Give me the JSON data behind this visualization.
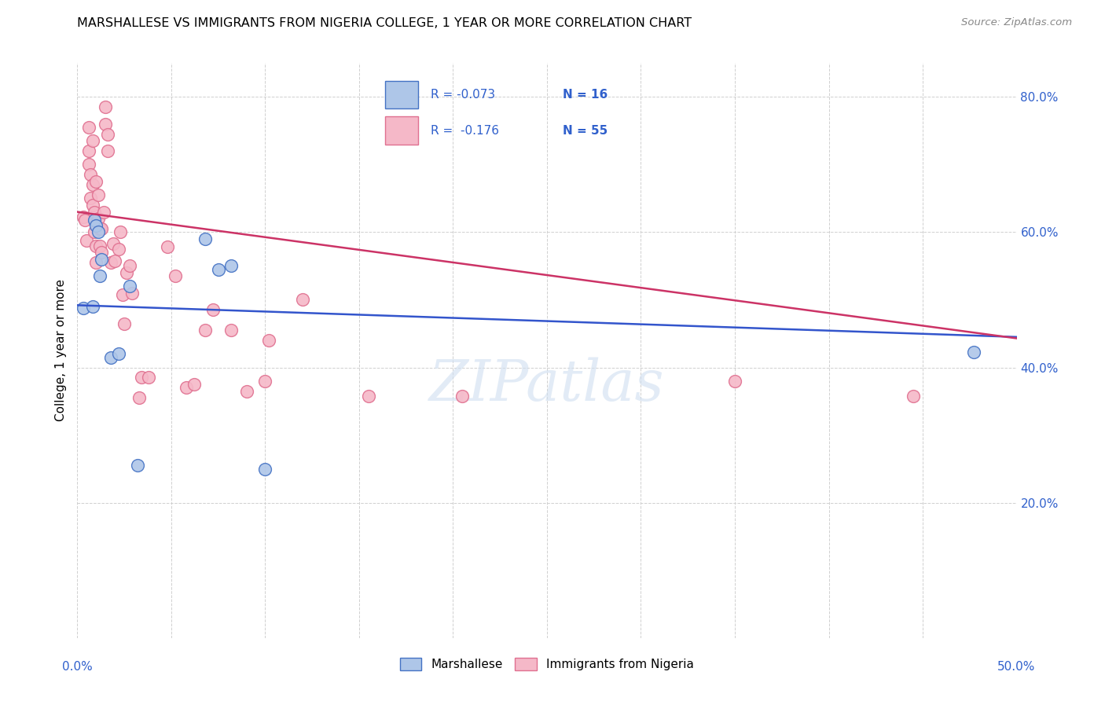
{
  "title": "MARSHALLESE VS IMMIGRANTS FROM NIGERIA COLLEGE, 1 YEAR OR MORE CORRELATION CHART",
  "source": "Source: ZipAtlas.com",
  "ylabel": "College, 1 year or more",
  "xlim": [
    0.0,
    0.5
  ],
  "ylim": [
    0.0,
    0.85
  ],
  "yticks": [
    0.0,
    0.2,
    0.4,
    0.6,
    0.8
  ],
  "xticks": [
    0.0,
    0.05,
    0.1,
    0.15,
    0.2,
    0.25,
    0.3,
    0.35,
    0.4,
    0.45,
    0.5
  ],
  "legend_r_blue": "R = -0.073",
  "legend_n_blue": "N = 16",
  "legend_r_pink": "R =  -0.176",
  "legend_n_pink": "N = 55",
  "blue_fill": "#aec6e8",
  "pink_fill": "#f5b8c8",
  "blue_edge": "#4472c4",
  "pink_edge": "#e07090",
  "blue_line_color": "#3355cc",
  "pink_line_color": "#cc3366",
  "watermark": "ZIPatlas",
  "blue_scatter_x": [
    0.003,
    0.008,
    0.009,
    0.01,
    0.011,
    0.012,
    0.013,
    0.018,
    0.022,
    0.028,
    0.032,
    0.068,
    0.075,
    0.082,
    0.1,
    0.477
  ],
  "blue_scatter_y": [
    0.488,
    0.49,
    0.618,
    0.61,
    0.6,
    0.535,
    0.56,
    0.415,
    0.42,
    0.52,
    0.255,
    0.59,
    0.545,
    0.55,
    0.25,
    0.423
  ],
  "pink_scatter_x": [
    0.003,
    0.004,
    0.005,
    0.006,
    0.006,
    0.006,
    0.007,
    0.007,
    0.008,
    0.008,
    0.008,
    0.009,
    0.009,
    0.01,
    0.01,
    0.01,
    0.011,
    0.011,
    0.012,
    0.012,
    0.013,
    0.013,
    0.014,
    0.015,
    0.015,
    0.016,
    0.016,
    0.018,
    0.019,
    0.02,
    0.022,
    0.023,
    0.024,
    0.025,
    0.026,
    0.028,
    0.029,
    0.033,
    0.034,
    0.038,
    0.048,
    0.052,
    0.058,
    0.062,
    0.068,
    0.072,
    0.082,
    0.09,
    0.1,
    0.102,
    0.12,
    0.155,
    0.205,
    0.35,
    0.445
  ],
  "pink_scatter_y": [
    0.622,
    0.618,
    0.588,
    0.7,
    0.72,
    0.755,
    0.65,
    0.685,
    0.64,
    0.67,
    0.735,
    0.6,
    0.63,
    0.555,
    0.58,
    0.675,
    0.62,
    0.655,
    0.58,
    0.605,
    0.57,
    0.605,
    0.63,
    0.76,
    0.785,
    0.72,
    0.745,
    0.555,
    0.583,
    0.558,
    0.575,
    0.6,
    0.508,
    0.465,
    0.54,
    0.55,
    0.51,
    0.355,
    0.385,
    0.385,
    0.578,
    0.535,
    0.37,
    0.375,
    0.455,
    0.485,
    0.455,
    0.365,
    0.38,
    0.44,
    0.5,
    0.358,
    0.358,
    0.38,
    0.358
  ],
  "blue_line_x": [
    0.0,
    0.5
  ],
  "blue_line_y": [
    0.492,
    0.445
  ],
  "pink_line_x": [
    0.0,
    0.5
  ],
  "pink_line_y": [
    0.63,
    0.443
  ]
}
